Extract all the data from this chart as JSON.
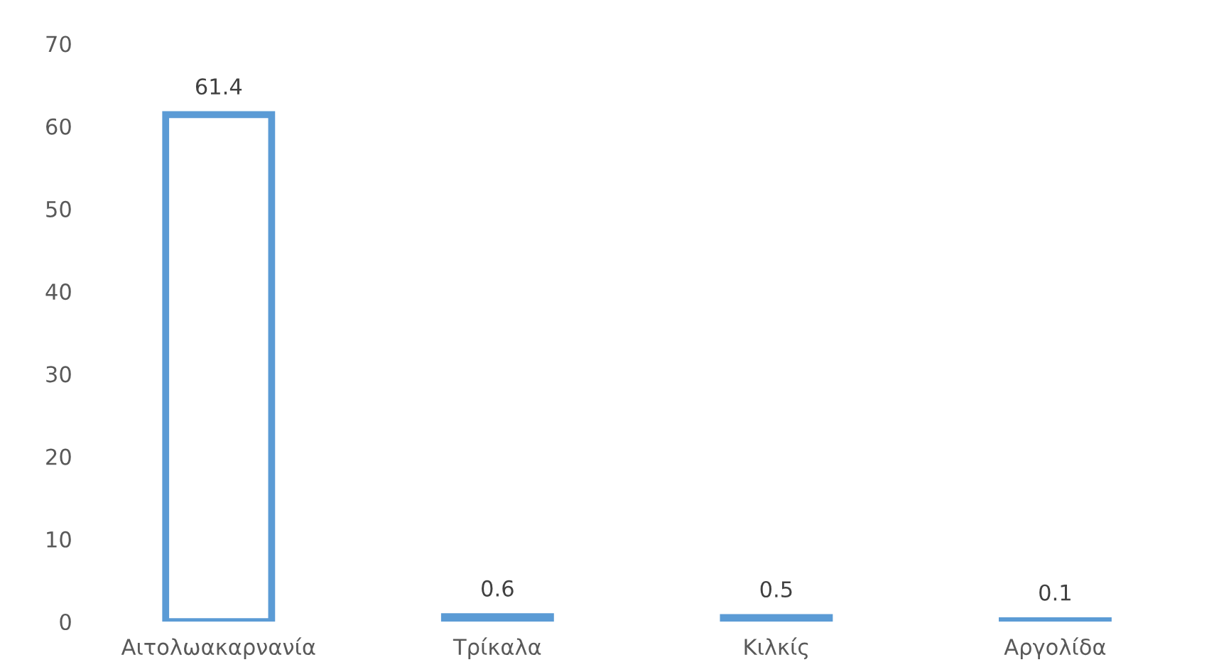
{
  "chart_data": {
    "type": "bar",
    "categories": [
      "Αιτολωακαρνανία",
      "Τρίκαλα",
      "Κιλκίς",
      "Αργολίδα"
    ],
    "values": [
      61.4,
      0.6,
      0.5,
      0.1
    ],
    "color": "#5b9bd5",
    "ylim": [
      0,
      70
    ],
    "yticks": [
      0,
      10,
      20,
      30,
      40,
      50,
      60,
      70
    ],
    "data_labels": true,
    "grid": false,
    "legend": false
  }
}
